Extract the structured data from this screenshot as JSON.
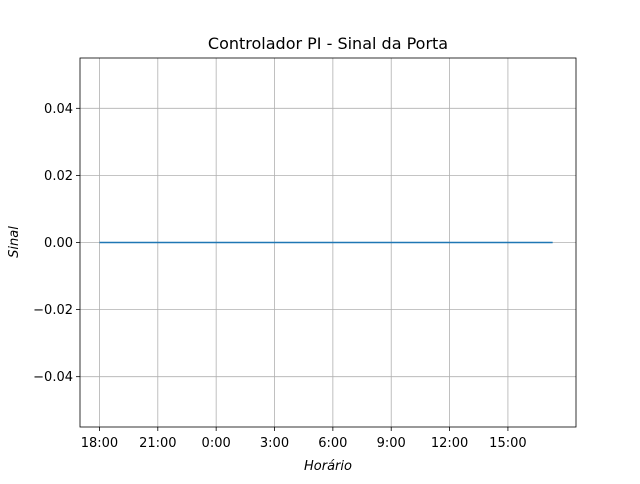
{
  "chart_data": {
    "type": "line",
    "title": "Controlador PI - Sinal da Porta",
    "xlabel": "Horário",
    "ylabel": "Sinal",
    "x_tick_labels": [
      "18:00",
      "21:00",
      "0:00",
      "3:00",
      "6:00",
      "9:00",
      "12:00",
      "15:00"
    ],
    "x_ticks_hours": [
      0,
      3,
      6,
      9,
      12,
      15,
      18,
      21
    ],
    "xlim_hours": [
      -1,
      24.5
    ],
    "y_ticks": [
      -0.04,
      -0.02,
      0.0,
      0.02,
      0.04
    ],
    "y_tick_labels": [
      "−0.04",
      "−0.02",
      "0.00",
      "0.02",
      "0.04"
    ],
    "ylim": [
      -0.055,
      0.055
    ],
    "grid": true,
    "series": [
      {
        "color": "#1f77b4",
        "x_hours": [
          0,
          23.3
        ],
        "values": [
          0.0,
          0.0
        ]
      }
    ]
  }
}
